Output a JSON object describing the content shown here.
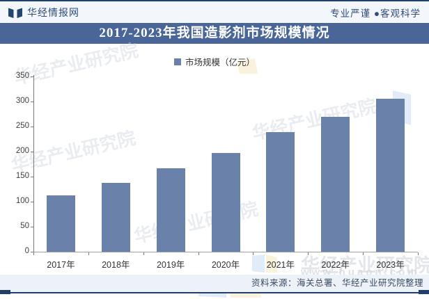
{
  "header": {
    "brand": "华经情报网",
    "tagline": "专业严谨 ●客观科学"
  },
  "title": "2017-2023年我国造影剂市场规模情况",
  "legend": {
    "label": "市场规模（亿元）"
  },
  "chart_data": {
    "type": "bar",
    "categories": [
      "2017年",
      "2018年",
      "2019年",
      "2020年",
      "2021年",
      "2022年",
      "2023年"
    ],
    "values": [
      112,
      138,
      167,
      197,
      239,
      270,
      305
    ],
    "series_name": "市场规模（亿元）",
    "title": "2017-2023年我国造影剂市场规模情况",
    "xlabel": "",
    "ylabel": "",
    "ylim": [
      0,
      350
    ],
    "ytick_step": 50,
    "grid": false,
    "legend_position": "top",
    "bar_color": "#6a81aa"
  },
  "footer": {
    "source": "资料来源：海关总署、华经产业研究院整理"
  },
  "watermark": {
    "text": "华经产业研究院",
    "url": "www.huaon.com"
  },
  "colors": {
    "banner": "#4a6698",
    "bar": "#6a81aa",
    "navy": "#20406b",
    "header_bg": "#f3f6fa"
  }
}
